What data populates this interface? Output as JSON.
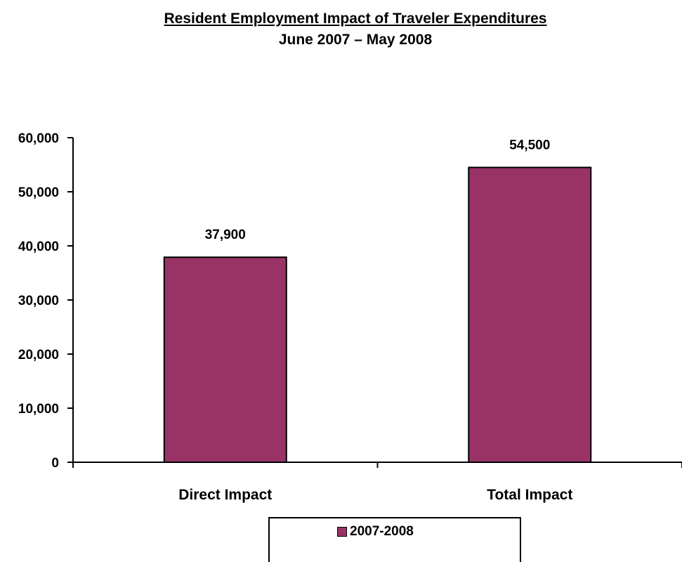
{
  "chart_data": {
    "type": "bar",
    "title": "Resident Employment Impact of Traveler Expenditures",
    "subtitle": "June 2007 – May 2008",
    "categories": [
      "Direct Impact",
      "Total Impact"
    ],
    "series": [
      {
        "name": "2007-2008",
        "values": [
          37900,
          54500
        ],
        "color": "#993366"
      }
    ],
    "data_labels": [
      "37,900",
      "54,500"
    ],
    "ylim": [
      0,
      60000
    ],
    "yticks": [
      0,
      10000,
      20000,
      30000,
      40000,
      50000,
      60000
    ],
    "ytick_labels": [
      "0",
      "10,000",
      "20,000",
      "30,000",
      "40,000",
      "50,000",
      "60,000"
    ],
    "grid": false,
    "legend_position": "bottom"
  }
}
